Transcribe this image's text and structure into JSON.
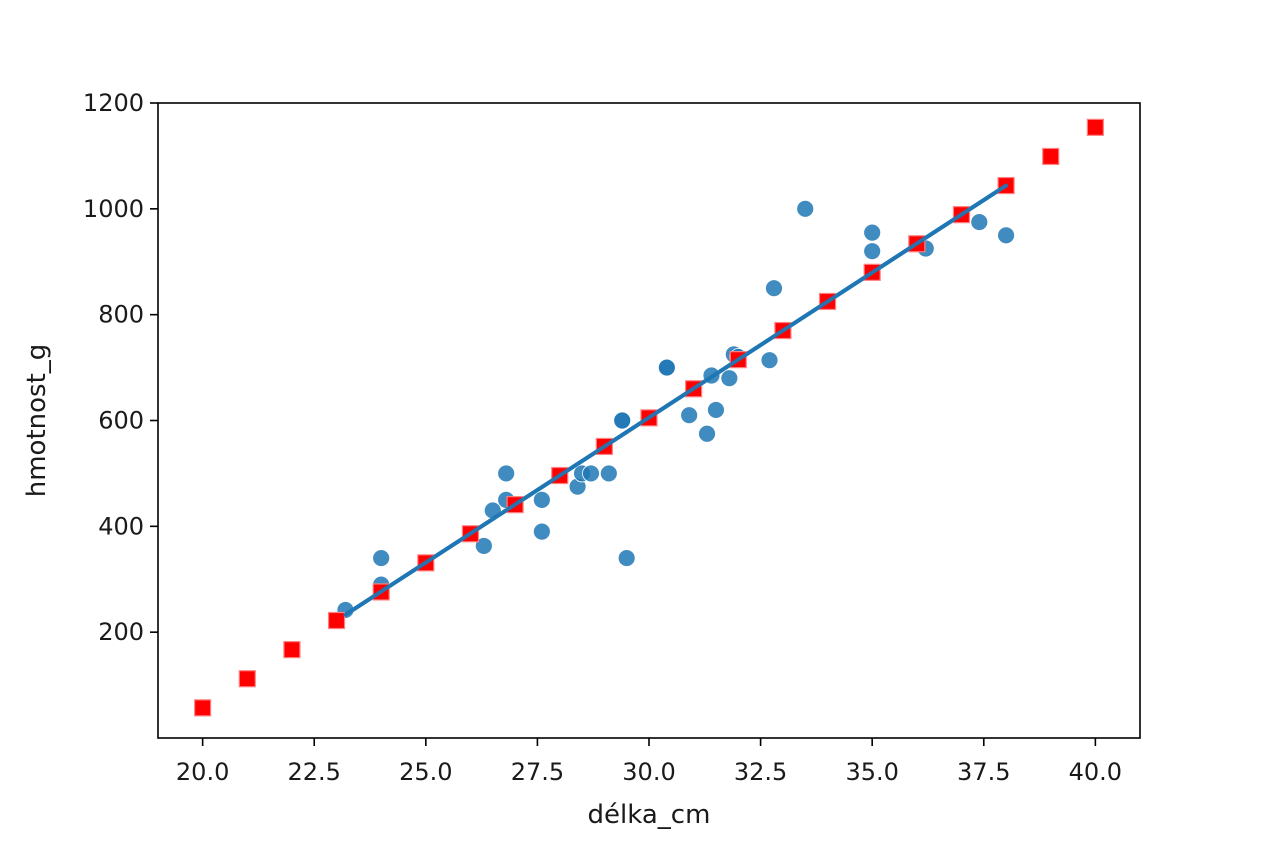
{
  "chart_data": {
    "type": "scatter",
    "xlabel": "délka_cm",
    "ylabel": "hmotnost_g",
    "xlim": [
      19.0,
      41.0
    ],
    "ylim": [
      0,
      1200
    ],
    "xticks": [
      20.0,
      22.5,
      25.0,
      27.5,
      30.0,
      32.5,
      35.0,
      37.5,
      40.0
    ],
    "xtick_labels": [
      "20.0",
      "22.5",
      "25.0",
      "27.5",
      "30.0",
      "32.5",
      "35.0",
      "37.5",
      "40.0"
    ],
    "yticks": [
      200,
      400,
      600,
      800,
      1000,
      1200
    ],
    "ytick_labels": [
      "200",
      "400",
      "600",
      "800",
      "1000",
      "1200"
    ],
    "grid": false,
    "series": [
      {
        "kind": "scatter",
        "marker": "circle",
        "color": "#1f77b4",
        "x": [
          23.2,
          24.0,
          24.0,
          26.3,
          26.5,
          26.8,
          26.8,
          27.6,
          27.6,
          28.4,
          28.5,
          28.7,
          29.1,
          29.4,
          29.4,
          29.5,
          30.4,
          30.4,
          30.9,
          31.3,
          31.4,
          31.5,
          31.8,
          31.9,
          32.0,
          32.7,
          32.8,
          33.5,
          35.0,
          35.0,
          36.2,
          37.4,
          38.0
        ],
        "y": [
          242,
          340,
          290,
          363,
          430,
          450,
          500,
          390,
          450,
          475,
          500,
          500,
          500,
          600,
          600,
          340,
          700,
          700,
          610,
          575,
          685,
          620,
          680,
          725,
          720,
          714,
          850,
          1000,
          955,
          920,
          925,
          975,
          950
        ]
      },
      {
        "kind": "scatter",
        "marker": "square",
        "color": "#ff0000",
        "x": [
          20,
          21,
          22,
          23,
          24,
          25,
          26,
          27,
          28,
          29,
          30,
          31,
          32,
          33,
          34,
          35,
          36,
          37,
          38,
          39,
          40
        ],
        "y": [
          57,
          112,
          167,
          222,
          276,
          331,
          386,
          441,
          496,
          551,
          605,
          660,
          715,
          770,
          825,
          880,
          934,
          989,
          1044,
          1099,
          1154
        ]
      },
      {
        "kind": "line",
        "color": "#1f77b4",
        "x": [
          23.2,
          38.0
        ],
        "y": [
          233,
          1044
        ]
      }
    ]
  }
}
